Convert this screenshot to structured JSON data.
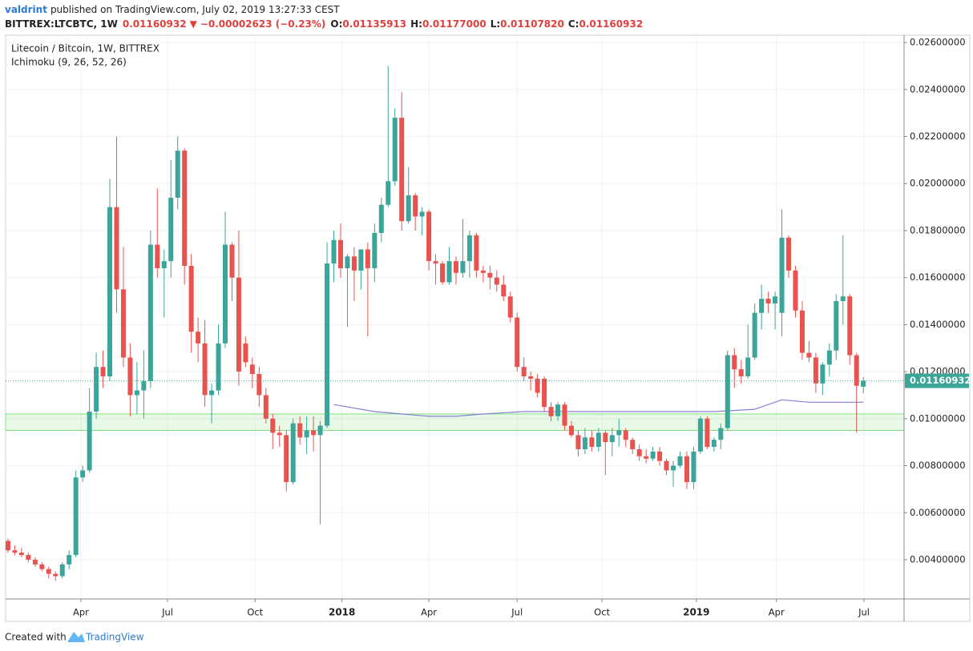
{
  "header": {
    "author": "valdrint",
    "published": "published on TradingView.com, July 02, 2019 13:27:33 CEST",
    "symbol": "BITTREX:LTCBTC, 1W",
    "price": "0.01160932",
    "arrow": "▼",
    "change": "−0.00002623 (−0.23%)",
    "ohlc": [
      {
        "label": "O:",
        "value": "0.01135913"
      },
      {
        "label": "H:",
        "value": "0.01177000"
      },
      {
        "label": "L:",
        "value": "0.01107820"
      },
      {
        "label": "C:",
        "value": "0.01160932"
      }
    ]
  },
  "footer": {
    "text": "Created with",
    "brand": "TradingView"
  },
  "chart_data": {
    "type": "candlestick",
    "title": "Litecoin / Bitcoin, 1W, BITTREX",
    "up_color": "#3ba599",
    "down_color": "#e8534f",
    "open": [
      0.0048,
      0.0044,
      0.0043,
      0.0042,
      0.004,
      0.0038,
      0.0036,
      0.0034,
      0.0033,
      0.0038,
      0.0042,
      0.0075,
      0.0078,
      0.0103,
      0.0122,
      0.0118,
      0.019,
      0.0155,
      0.0126,
      0.011,
      0.0112,
      0.0116,
      0.0174,
      0.0164,
      0.0167,
      0.0194,
      0.0214,
      0.0165,
      0.0137,
      0.0132,
      0.011,
      0.0112,
      0.0132,
      0.0174,
      0.016,
      0.0132,
      0.0123,
      0.0119,
      0.011,
      0.01,
      0.0094,
      0.0093,
      0.0073,
      0.0098,
      0.0092,
      0.0095,
      0.0093,
      0.0097,
      0.0166,
      0.0176,
      0.0164,
      0.0169,
      0.0163,
      0.0172,
      0.0164,
      0.0179,
      0.0191,
      0.0201,
      0.0228,
      0.0184,
      0.0195,
      0.0186,
      0.0188,
      0.0167,
      0.0166,
      0.0158,
      0.0167,
      0.0162,
      0.0167,
      0.0178,
      0.0163,
      0.0162,
      0.016,
      0.0157,
      0.0152,
      0.0143,
      0.0122,
      0.0118,
      0.0117,
      0.0117,
      0.0105,
      0.0101,
      0.0106,
      0.0097,
      0.0093,
      0.0087,
      0.0092,
      0.0088,
      0.0094,
      0.009,
      0.0093,
      0.0095,
      0.0091,
      0.0087,
      0.0084,
      0.0083,
      0.0086,
      0.0082,
      0.0078,
      0.008,
      0.0084,
      0.0073,
      0.0086,
      0.01,
      0.0088,
      0.0091,
      0.0096,
      0.0127,
      0.0121,
      0.0118,
      0.0126,
      0.0145,
      0.0151,
      0.0149,
      0.0145,
      0.0177,
      0.0163,
      0.0146,
      0.0128,
      0.0126,
      0.0115,
      0.0123,
      0.0129,
      0.015,
      0.0152,
      0.0127,
      0.01135913
    ],
    "high": [
      0.0049,
      0.0046,
      0.0045,
      0.0043,
      0.0041,
      0.0039,
      0.0037,
      0.0035,
      0.0039,
      0.0044,
      0.0078,
      0.008,
      0.0113,
      0.0128,
      0.0129,
      0.0202,
      0.022,
      0.0173,
      0.0132,
      0.0124,
      0.0129,
      0.018,
      0.0198,
      0.0172,
      0.021,
      0.022,
      0.0215,
      0.017,
      0.0143,
      0.0142,
      0.0115,
      0.014,
      0.0188,
      0.0175,
      0.018,
      0.0135,
      0.0126,
      0.0122,
      0.0113,
      0.0102,
      0.0097,
      0.0095,
      0.01,
      0.0101,
      0.0101,
      0.0101,
      0.0099,
      0.0175,
      0.018,
      0.0183,
      0.017,
      0.0173,
      0.0172,
      0.0175,
      0.0183,
      0.0194,
      0.025,
      0.0232,
      0.0239,
      0.0207,
      0.0196,
      0.019,
      0.0189,
      0.017,
      0.0167,
      0.0173,
      0.0169,
      0.0185,
      0.018,
      0.0179,
      0.0165,
      0.0165,
      0.0163,
      0.0161,
      0.0154,
      0.0145,
      0.0126,
      0.012,
      0.0119,
      0.0118,
      0.0107,
      0.0107,
      0.0107,
      0.0099,
      0.0095,
      0.0096,
      0.0095,
      0.0096,
      0.0095,
      0.0096,
      0.01,
      0.0096,
      0.0092,
      0.0089,
      0.0087,
      0.0088,
      0.0088,
      0.0083,
      0.0082,
      0.0086,
      0.0086,
      0.0088,
      0.0101,
      0.0101,
      0.0092,
      0.0098,
      0.0129,
      0.013,
      0.0125,
      0.014,
      0.0149,
      0.0157,
      0.0154,
      0.0154,
      0.0189,
      0.0178,
      0.0165,
      0.015,
      0.0133,
      0.0128,
      0.0124,
      0.0132,
      0.0153,
      0.0178,
      0.0153,
      0.0128,
      0.01177
    ],
    "low": [
      0.0043,
      0.0042,
      0.0041,
      0.0039,
      0.0037,
      0.0035,
      0.0032,
      0.0031,
      0.0032,
      0.0036,
      0.0041,
      0.0073,
      0.0077,
      0.01,
      0.0113,
      0.0116,
      0.0145,
      0.0122,
      0.0101,
      0.0102,
      0.01,
      0.0113,
      0.016,
      0.0143,
      0.016,
      0.0189,
      0.0157,
      0.0128,
      0.0124,
      0.0105,
      0.0098,
      0.011,
      0.013,
      0.015,
      0.0114,
      0.0122,
      0.0113,
      0.0105,
      0.0098,
      0.0087,
      0.0088,
      0.0069,
      0.0072,
      0.0089,
      0.0085,
      0.0086,
      0.0055,
      0.0096,
      0.0158,
      0.016,
      0.0139,
      0.015,
      0.0155,
      0.0135,
      0.0158,
      0.0175,
      0.019,
      0.0199,
      0.018,
      0.0183,
      0.018,
      0.0178,
      0.0163,
      0.0157,
      0.0157,
      0.0157,
      0.0157,
      0.016,
      0.016,
      0.016,
      0.0158,
      0.0155,
      0.0154,
      0.015,
      0.0141,
      0.012,
      0.0116,
      0.0112,
      0.0109,
      0.0103,
      0.0099,
      0.0099,
      0.0095,
      0.0092,
      0.0084,
      0.0085,
      0.0086,
      0.0086,
      0.0076,
      0.0084,
      0.0088,
      0.0088,
      0.0085,
      0.0082,
      0.0081,
      0.0082,
      0.008,
      0.0076,
      0.0071,
      0.0079,
      0.007,
      0.007,
      0.0085,
      0.0087,
      0.0086,
      0.0087,
      0.0095,
      0.0113,
      0.0115,
      0.0117,
      0.0125,
      0.0138,
      0.0145,
      0.0138,
      0.0135,
      0.016,
      0.0143,
      0.0125,
      0.0124,
      0.0111,
      0.011,
      0.0118,
      0.0125,
      0.014,
      0.0123,
      0.0094,
      0.0110782
    ],
    "close": [
      0.0044,
      0.0043,
      0.0042,
      0.004,
      0.0038,
      0.0036,
      0.0034,
      0.0033,
      0.0038,
      0.0042,
      0.0075,
      0.0078,
      0.0103,
      0.0122,
      0.0118,
      0.019,
      0.0155,
      0.0126,
      0.011,
      0.0112,
      0.0116,
      0.0174,
      0.0164,
      0.0167,
      0.0194,
      0.0214,
      0.0165,
      0.0137,
      0.0132,
      0.011,
      0.0112,
      0.0132,
      0.0174,
      0.016,
      0.012,
      0.0124,
      0.0119,
      0.011,
      0.01,
      0.0094,
      0.0093,
      0.0073,
      0.0098,
      0.0092,
      0.0095,
      0.0093,
      0.0097,
      0.0166,
      0.0176,
      0.0164,
      0.0169,
      0.0163,
      0.0172,
      0.0164,
      0.0179,
      0.0191,
      0.0201,
      0.0228,
      0.0184,
      0.0195,
      0.0186,
      0.0188,
      0.0167,
      0.0166,
      0.0158,
      0.0167,
      0.0162,
      0.0167,
      0.0178,
      0.0163,
      0.0162,
      0.016,
      0.0157,
      0.0152,
      0.0143,
      0.0122,
      0.0118,
      0.0117,
      0.0111,
      0.0105,
      0.0101,
      0.0106,
      0.0097,
      0.0093,
      0.0087,
      0.0092,
      0.0088,
      0.0094,
      0.009,
      0.0093,
      0.0095,
      0.0091,
      0.0087,
      0.0084,
      0.0083,
      0.0086,
      0.0082,
      0.0078,
      0.008,
      0.0084,
      0.0073,
      0.0086,
      0.01,
      0.0088,
      0.0091,
      0.0096,
      0.0127,
      0.0121,
      0.0118,
      0.0126,
      0.0145,
      0.0151,
      0.0149,
      0.0152,
      0.0177,
      0.0163,
      0.0146,
      0.0128,
      0.0126,
      0.0115,
      0.0123,
      0.0129,
      0.015,
      0.0152,
      0.0127,
      0.0114,
      0.01160932
    ],
    "ichimoku": {
      "name": "Ichimoku (9, 26, 52, 26)",
      "color": "#8a7fd6",
      "x": [
        48,
        54,
        58,
        62,
        66,
        70,
        76,
        86,
        96,
        104,
        110,
        114,
        118,
        126
      ],
      "values": [
        0.0106,
        0.0103,
        0.0102,
        0.0101,
        0.0101,
        0.0102,
        0.0103,
        0.0103,
        0.0103,
        0.0103,
        0.0104,
        0.0108,
        0.0107,
        0.0107
      ]
    },
    "zone": {
      "values": [
        0.0095,
        0.0102
      ],
      "color": "#7fe07f"
    },
    "xlim": [
      -0.35,
      132
    ],
    "xticks": [
      {
        "value": 10.74,
        "label": "Apr"
      },
      {
        "value": 23.5,
        "label": "Jul"
      },
      {
        "value": 36.4,
        "label": "Oct"
      },
      {
        "value": 49.2,
        "label": "2018"
      },
      {
        "value": 62.0,
        "label": "Apr"
      },
      {
        "value": 75.0,
        "label": "Jul"
      },
      {
        "value": 87.5,
        "label": "Oct"
      },
      {
        "value": 101.4,
        "label": "2019"
      },
      {
        "value": 113.2,
        "label": "Apr"
      },
      {
        "value": 126.1,
        "label": "Jul"
      }
    ],
    "ylim": [
      0.00233,
      0.02631
    ],
    "yticks": [
      {
        "value": 0.004,
        "label": "0.00400000"
      },
      {
        "value": 0.006,
        "label": "0.00600000"
      },
      {
        "value": 0.008,
        "label": "0.00800000"
      },
      {
        "value": 0.01,
        "label": "0.01000000"
      },
      {
        "value": 0.012,
        "label": "0.01200000"
      },
      {
        "value": 0.014,
        "label": "0.01400000"
      },
      {
        "value": 0.016,
        "label": "0.01600000"
      },
      {
        "value": 0.018,
        "label": "0.01800000"
      },
      {
        "value": 0.02,
        "label": "0.02000000"
      },
      {
        "value": 0.022,
        "label": "0.02200000"
      },
      {
        "value": 0.024,
        "label": "0.02400000"
      },
      {
        "value": 0.026,
        "label": "0.02600000"
      }
    ],
    "grid": true
  }
}
